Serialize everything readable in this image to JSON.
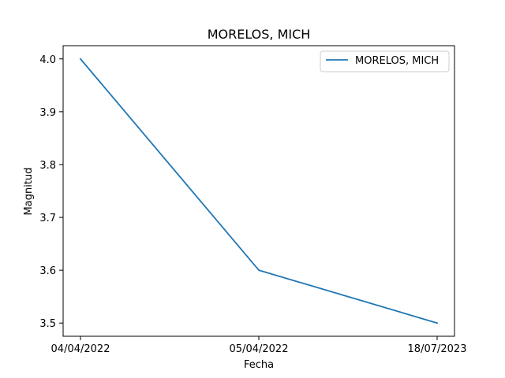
{
  "chart_data": {
    "type": "line",
    "title": "MORELOS, MICH",
    "xlabel": "Fecha",
    "ylabel": "Magnitud",
    "categories": [
      "04/04/2022",
      "05/04/2022",
      "18/07/2023"
    ],
    "series": [
      {
        "name": "MORELOS, MICH",
        "values": [
          4.0,
          3.6,
          3.5
        ],
        "color": "#1f77b4"
      }
    ],
    "ylim": [
      3.475,
      4.025
    ],
    "yticks": [
      3.5,
      3.6,
      3.7,
      3.8,
      3.9,
      4.0
    ],
    "ytick_labels": [
      "3.5",
      "3.6",
      "3.7",
      "3.8",
      "3.9",
      "4.0"
    ],
    "grid": false,
    "legend_position": "top-right"
  }
}
